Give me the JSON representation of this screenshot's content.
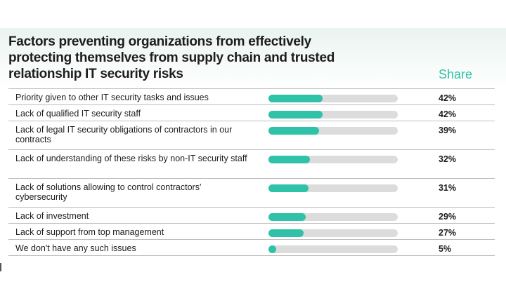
{
  "title": "Factors preventing organizations from effectively\nprotecting themselves from supply chain and trusted\nrelationship IT security risks",
  "share_label": "Share",
  "colors": {
    "accent": "#2fc2a8",
    "track": "#dcdcdc",
    "text": "#1d1d1b"
  },
  "chart_data": {
    "type": "bar",
    "orientation": "horizontal",
    "title": "Factors preventing organizations from effectively protecting themselves from supply chain and trusted relationship IT security risks",
    "value_header": "Share",
    "unit": "%",
    "xlim": [
      0,
      100
    ],
    "categories": [
      "Priority given to other IT security tasks and issues",
      "Lack of qualified IT security staff",
      "Lack of legal IT security obligations of contractors in our contracts",
      "Lack of understanding of these risks by non-IT security staff",
      "Lack of solutions allowing to control contractors' cybersecurity",
      "Lack of investment",
      "Lack of support from top management",
      "We don't have any such issues"
    ],
    "values": [
      42,
      42,
      39,
      32,
      31,
      29,
      27,
      5
    ],
    "value_labels": [
      "42%",
      "42%",
      "39%",
      "32%",
      "31%",
      "29%",
      "27%",
      "5%"
    ]
  }
}
